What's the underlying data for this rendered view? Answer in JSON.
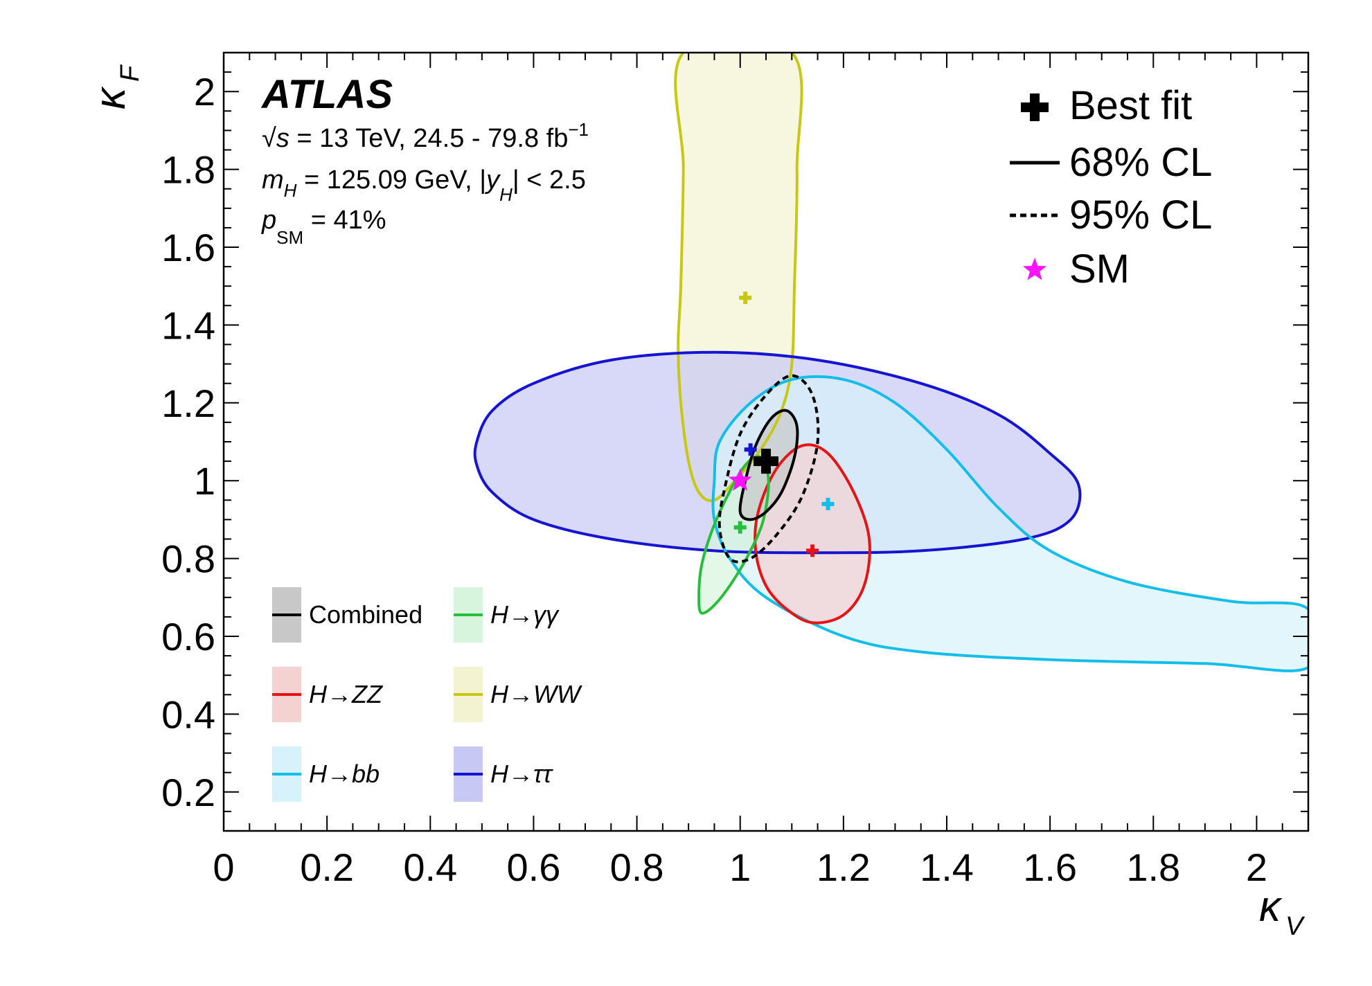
{
  "chart_data": {
    "type": "scatter",
    "xlabel": "κ",
    "xlabel_sub": "V",
    "ylabel": "κ",
    "ylabel_sub": "F",
    "xlim": [
      0,
      2.1
    ],
    "ylim": [
      0.1,
      2.1
    ],
    "x_ticks": [
      0,
      0.2,
      0.4,
      0.6,
      0.8,
      1,
      1.2,
      1.4,
      1.6,
      1.8,
      2
    ],
    "x_tick_labels": [
      "0",
      "0.2",
      "0.4",
      "0.6",
      "0.8",
      "1",
      "1.2",
      "1.4",
      "1.6",
      "1.8",
      "2"
    ],
    "y_ticks": [
      0.2,
      0.4,
      0.6,
      0.8,
      1,
      1.2,
      1.4,
      1.6,
      1.8,
      2
    ],
    "y_tick_labels": [
      "0.2",
      "0.4",
      "0.6",
      "0.8",
      "1",
      "1.2",
      "1.4",
      "1.6",
      "1.8",
      "2"
    ],
    "grid": false,
    "annotations": {
      "experiment": "ATLAS",
      "line1_sqrt": "√",
      "line1_s": "s",
      "line1_rest": " = 13 TeV, 24.5 - 79.8 fb",
      "line1_sup": "−1",
      "line2_m": "m",
      "line2_sub": "H",
      "line2_mid": " = 125.09 GeV, |",
      "line2_y": "y",
      "line2_ysub": "H",
      "line2_end": "| < 2.5",
      "line3_p": "p",
      "line3_sub": "SM",
      "line3_rest": " = 41%"
    },
    "legend_top_right": {
      "best_fit": "Best fit",
      "cl68": "68% CL",
      "cl95": "95% CL",
      "sm": "SM"
    },
    "legend_bottom_left": [
      "Combined",
      "H→γγ",
      "H→ZZ",
      "H→WW",
      "H→bb",
      "H→ττ"
    ],
    "sm_point": {
      "x": 1.0,
      "y": 1.0
    },
    "series": [
      {
        "name": "H→WW",
        "color": "#c8c814",
        "fill": "#f3f3d2",
        "best_fit": {
          "x": 1.01,
          "y": 1.47
        },
        "contour68": [
          [
            0.89,
            2.1
          ],
          [
            0.89,
            1.8
          ],
          [
            0.885,
            1.5
          ],
          [
            0.88,
            1.35
          ],
          [
            0.885,
            1.2
          ],
          [
            0.9,
            1.05
          ],
          [
            0.92,
            0.97
          ],
          [
            0.95,
            0.95
          ],
          [
            0.99,
            1.0
          ],
          [
            1.04,
            1.08
          ],
          [
            1.08,
            1.18
          ],
          [
            1.1,
            1.3
          ],
          [
            1.105,
            1.5
          ],
          [
            1.11,
            1.8
          ],
          [
            1.1,
            2.1
          ]
        ]
      },
      {
        "name": "H→ττ",
        "color": "#1414d2",
        "fill": "#c8c8f5",
        "best_fit": {
          "x": 1.02,
          "y": 1.08
        },
        "contour68": [
          [
            0.49,
            1.1
          ],
          [
            0.52,
            1.18
          ],
          [
            0.6,
            1.25
          ],
          [
            0.75,
            1.31
          ],
          [
            0.95,
            1.33
          ],
          [
            1.15,
            1.31
          ],
          [
            1.35,
            1.25
          ],
          [
            1.5,
            1.17
          ],
          [
            1.6,
            1.07
          ],
          [
            1.655,
            0.99
          ],
          [
            1.64,
            0.9
          ],
          [
            1.55,
            0.85
          ],
          [
            1.35,
            0.82
          ],
          [
            1.15,
            0.815
          ],
          [
            0.95,
            0.82
          ],
          [
            0.75,
            0.85
          ],
          [
            0.6,
            0.9
          ],
          [
            0.52,
            0.97
          ],
          [
            0.49,
            1.04
          ]
        ]
      },
      {
        "name": "H→bb",
        "color": "#14beeb",
        "fill": "#d7f2fa",
        "best_fit": {
          "x": 1.17,
          "y": 0.94
        },
        "contour68": [
          [
            0.95,
            1.0
          ],
          [
            0.96,
            1.1
          ],
          [
            1.02,
            1.2
          ],
          [
            1.1,
            1.26
          ],
          [
            1.2,
            1.26
          ],
          [
            1.3,
            1.2
          ],
          [
            1.4,
            1.08
          ],
          [
            1.5,
            0.93
          ],
          [
            1.6,
            0.82
          ],
          [
            1.75,
            0.74
          ],
          [
            1.95,
            0.69
          ],
          [
            2.1,
            0.67
          ],
          [
            2.1,
            0.52
          ],
          [
            1.9,
            0.53
          ],
          [
            1.6,
            0.54
          ],
          [
            1.35,
            0.56
          ],
          [
            1.2,
            0.6
          ],
          [
            1.05,
            0.7
          ],
          [
            0.98,
            0.8
          ],
          [
            0.95,
            0.9
          ]
        ]
      },
      {
        "name": "H→ZZ",
        "color": "#e61414",
        "fill": "#f5d2d2",
        "best_fit": {
          "x": 1.14,
          "y": 0.82
        },
        "contour68": [
          [
            1.03,
            0.82
          ],
          [
            1.035,
            0.92
          ],
          [
            1.07,
            1.03
          ],
          [
            1.12,
            1.09
          ],
          [
            1.17,
            1.07
          ],
          [
            1.22,
            0.97
          ],
          [
            1.25,
            0.85
          ],
          [
            1.24,
            0.73
          ],
          [
            1.2,
            0.655
          ],
          [
            1.14,
            0.635
          ],
          [
            1.09,
            0.67
          ],
          [
            1.05,
            0.73
          ]
        ]
      },
      {
        "name": "H→γγ",
        "color": "#28be3c",
        "fill": "#d7f5dc",
        "best_fit": {
          "x": 1.0,
          "y": 0.88
        },
        "contour68": [
          [
            0.92,
            0.7
          ],
          [
            0.925,
            0.78
          ],
          [
            0.945,
            0.87
          ],
          [
            0.975,
            0.96
          ],
          [
            1.01,
            1.04
          ],
          [
            1.04,
            1.06
          ],
          [
            1.055,
            1.0
          ],
          [
            1.045,
            0.9
          ],
          [
            1.02,
            0.82
          ],
          [
            0.985,
            0.74
          ],
          [
            0.95,
            0.68
          ],
          [
            0.925,
            0.66
          ]
        ]
      },
      {
        "name": "Combined",
        "color": "#000000",
        "fill": "#c8c8c8",
        "best_fit": {
          "x": 1.05,
          "y": 1.05
        },
        "contour68": [
          [
            1.0,
            0.92
          ],
          [
            1.01,
            1.0
          ],
          [
            1.03,
            1.09
          ],
          [
            1.06,
            1.16
          ],
          [
            1.09,
            1.18
          ],
          [
            1.11,
            1.14
          ],
          [
            1.105,
            1.06
          ],
          [
            1.08,
            0.97
          ],
          [
            1.05,
            0.92
          ],
          [
            1.02,
            0.9
          ]
        ],
        "contour95": [
          [
            0.96,
            0.88
          ],
          [
            0.97,
            0.98
          ],
          [
            1.0,
            1.12
          ],
          [
            1.05,
            1.22
          ],
          [
            1.1,
            1.27
          ],
          [
            1.14,
            1.22
          ],
          [
            1.15,
            1.1
          ],
          [
            1.12,
            0.96
          ],
          [
            1.07,
            0.86
          ],
          [
            1.02,
            0.8
          ],
          [
            0.98,
            0.8
          ]
        ]
      }
    ]
  }
}
